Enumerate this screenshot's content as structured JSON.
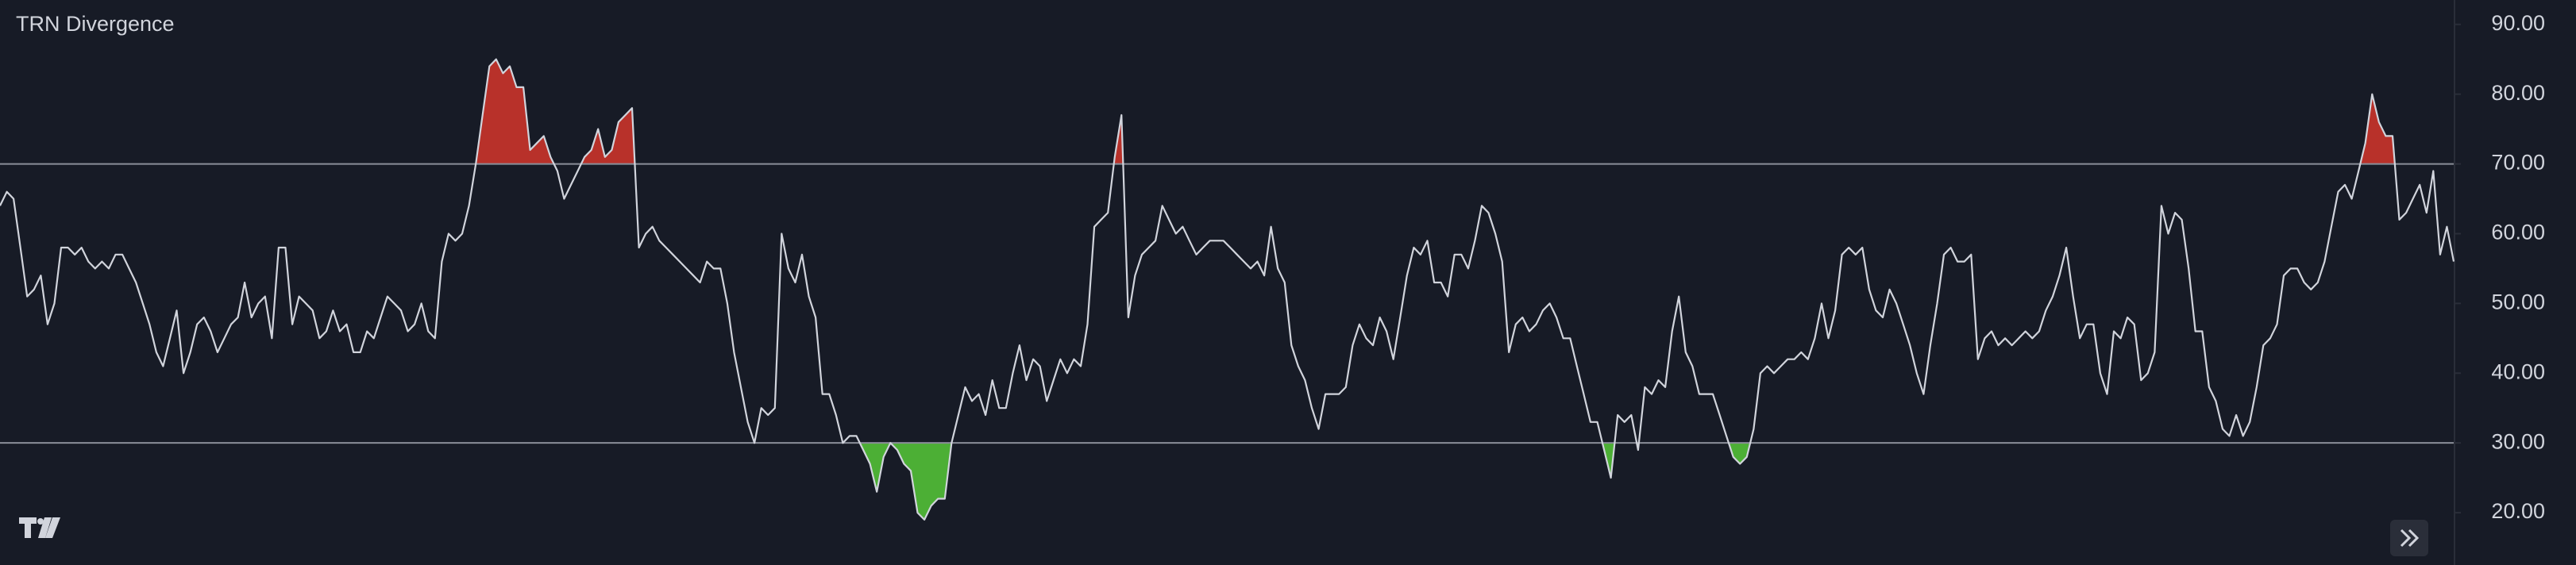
{
  "chart_data": {
    "type": "line",
    "title": "TRN Divergence",
    "ylim": [
      12.5,
      93.5
    ],
    "yticks": [
      {
        "value": 20,
        "label": "20.00"
      },
      {
        "value": 30,
        "label": "30.00"
      },
      {
        "value": 40,
        "label": "40.00"
      },
      {
        "value": 50,
        "label": "50.00"
      },
      {
        "value": 60,
        "label": "60.00"
      },
      {
        "value": 70,
        "label": "70.00"
      },
      {
        "value": 80,
        "label": "80.00"
      },
      {
        "value": 90,
        "label": "90.00"
      }
    ],
    "bands": [
      70,
      30
    ],
    "line_color": "#d1d4dc",
    "overbought_color": "#b8312a",
    "oversold_color": "#4caf35",
    "values": [
      64,
      66,
      65,
      58,
      51,
      52,
      54,
      47,
      50,
      58,
      58,
      57,
      58,
      56,
      55,
      56,
      55,
      57,
      57,
      55,
      53,
      50,
      47,
      43,
      41,
      45,
      49,
      40,
      43,
      47,
      48,
      46,
      43,
      45,
      47,
      48,
      53,
      48,
      50,
      51,
      45,
      58,
      58,
      47,
      51,
      50,
      49,
      45,
      46,
      49,
      46,
      47,
      43,
      43,
      46,
      45,
      48,
      51,
      50,
      49,
      46,
      47,
      50,
      46,
      45,
      56,
      60,
      59,
      60,
      64,
      70,
      77,
      84,
      85,
      83,
      84,
      81,
      81,
      72,
      73,
      74,
      71,
      69,
      65,
      67,
      69,
      71,
      72,
      75,
      71,
      72,
      76,
      77,
      78,
      58,
      60,
      61,
      59,
      58,
      57,
      56,
      55,
      54,
      53,
      56,
      55,
      55,
      50,
      43,
      38,
      33,
      30,
      35,
      34,
      35,
      60,
      55,
      53,
      57,
      51,
      48,
      37,
      37,
      34,
      30,
      31,
      31,
      29,
      27,
      23,
      28,
      30,
      29,
      27,
      26,
      20,
      19,
      21,
      22,
      22,
      30,
      34,
      38,
      36,
      37,
      34,
      39,
      35,
      35,
      40,
      44,
      39,
      42,
      41,
      36,
      39,
      42,
      40,
      42,
      41,
      47,
      61,
      62,
      63,
      71,
      77,
      48,
      54,
      57,
      58,
      59,
      64,
      62,
      60,
      61,
      59,
      57,
      58,
      59,
      59,
      59,
      58,
      57,
      56,
      55,
      56,
      54,
      61,
      55,
      53,
      44,
      41,
      39,
      35,
      32,
      37,
      37,
      37,
      38,
      44,
      47,
      45,
      44,
      48,
      46,
      42,
      48,
      54,
      58,
      57,
      59,
      53,
      53,
      51,
      57,
      57,
      55,
      59,
      64,
      63,
      60,
      56,
      43,
      47,
      48,
      46,
      47,
      49,
      50,
      48,
      45,
      45,
      41,
      37,
      33,
      33,
      29,
      25,
      34,
      33,
      34,
      29,
      38,
      37,
      39,
      38,
      46,
      51,
      43,
      41,
      37,
      37,
      37,
      34,
      31,
      28,
      27,
      28,
      32,
      40,
      41,
      40,
      41,
      42,
      42,
      43,
      42,
      45,
      50,
      45,
      49,
      57,
      58,
      57,
      58,
      52,
      49,
      48,
      52,
      50,
      47,
      44,
      40,
      37,
      44,
      50,
      57,
      58,
      56,
      56,
      57,
      42,
      45,
      46,
      44,
      45,
      44,
      45,
      46,
      45,
      46,
      49,
      51,
      54,
      58,
      51,
      45,
      47,
      47,
      40,
      37,
      46,
      45,
      48,
      47,
      39,
      40,
      43,
      64,
      60,
      63,
      62,
      55,
      46,
      46,
      38,
      36,
      32,
      31,
      34,
      31,
      33,
      38,
      44,
      45,
      47,
      54,
      55,
      55,
      53,
      52,
      53,
      56,
      61,
      66,
      67,
      65,
      69,
      73,
      80,
      76,
      74,
      74,
      62,
      63,
      65,
      67,
      63,
      69,
      57,
      61,
      56
    ]
  }
}
